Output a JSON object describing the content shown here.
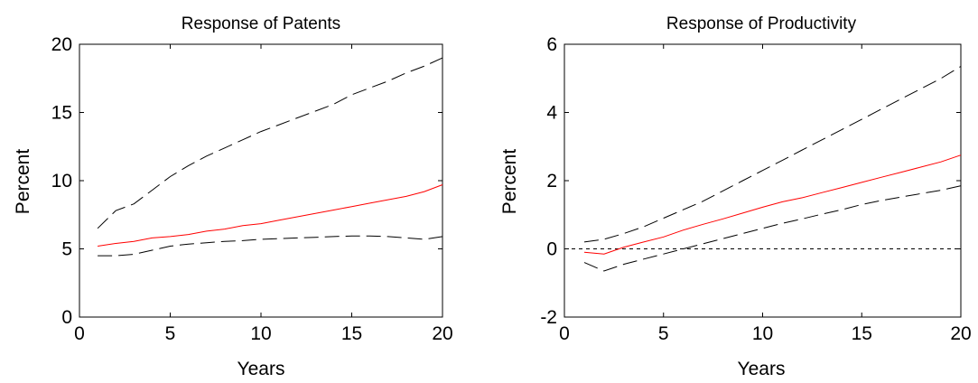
{
  "chart_data": [
    {
      "type": "line",
      "title": "Response of Patents",
      "xlabel": "Years",
      "ylabel": "Percent",
      "xlim": [
        0,
        20
      ],
      "ylim": [
        0,
        20
      ],
      "xticks": [
        "0",
        "5",
        "10",
        "15",
        "20"
      ],
      "yticks": [
        "0",
        "5",
        "10",
        "15",
        "20"
      ],
      "grid": false,
      "x": [
        1,
        2,
        3,
        4,
        5,
        6,
        7,
        8,
        9,
        10,
        11,
        12,
        13,
        14,
        15,
        16,
        17,
        18,
        19,
        20
      ],
      "series": [
        {
          "role": "upper-band",
          "style": "dashed",
          "color": "#000000",
          "values": [
            6.5,
            7.8,
            8.3,
            9.3,
            10.3,
            11.1,
            11.8,
            12.4,
            13.0,
            13.6,
            14.1,
            14.6,
            15.1,
            15.6,
            16.3,
            16.8,
            17.3,
            17.9,
            18.4,
            19.0
          ]
        },
        {
          "role": "point-estimate",
          "style": "solid",
          "color": "#ff0000",
          "values": [
            5.2,
            5.4,
            5.55,
            5.8,
            5.9,
            6.05,
            6.3,
            6.45,
            6.7,
            6.85,
            7.1,
            7.35,
            7.6,
            7.85,
            8.1,
            8.35,
            8.6,
            8.85,
            9.2,
            9.7
          ]
        },
        {
          "role": "lower-band",
          "style": "dashed",
          "color": "#000000",
          "values": [
            4.5,
            4.5,
            4.6,
            4.9,
            5.2,
            5.35,
            5.45,
            5.55,
            5.6,
            5.7,
            5.75,
            5.8,
            5.85,
            5.9,
            5.95,
            5.95,
            5.9,
            5.8,
            5.7,
            5.9
          ]
        }
      ]
    },
    {
      "type": "line",
      "title": "Response of Productivity",
      "xlabel": "Years",
      "ylabel": "Percent",
      "xlim": [
        0,
        20
      ],
      "ylim": [
        -2,
        6
      ],
      "xticks": [
        "0",
        "5",
        "10",
        "15",
        "20"
      ],
      "yticks": [
        "-2",
        "0",
        "2",
        "4",
        "6"
      ],
      "grid": false,
      "zero_line": {
        "y": 0,
        "style": "dotted",
        "color": "#000000"
      },
      "x": [
        1,
        2,
        3,
        4,
        5,
        6,
        7,
        8,
        9,
        10,
        11,
        12,
        13,
        14,
        15,
        16,
        17,
        18,
        19,
        20
      ],
      "series": [
        {
          "role": "upper-band",
          "style": "dashed",
          "color": "#000000",
          "values": [
            0.2,
            0.28,
            0.45,
            0.65,
            0.9,
            1.15,
            1.4,
            1.7,
            2.0,
            2.3,
            2.6,
            2.9,
            3.2,
            3.5,
            3.8,
            4.1,
            4.4,
            4.7,
            5.0,
            5.35
          ]
        },
        {
          "role": "point-estimate",
          "style": "solid",
          "color": "#ff0000",
          "values": [
            -0.1,
            -0.15,
            0.05,
            0.2,
            0.35,
            0.55,
            0.72,
            0.88,
            1.05,
            1.22,
            1.38,
            1.5,
            1.65,
            1.8,
            1.95,
            2.1,
            2.25,
            2.4,
            2.55,
            2.75
          ]
        },
        {
          "role": "lower-band",
          "style": "dashed",
          "color": "#000000",
          "values": [
            -0.4,
            -0.65,
            -0.45,
            -0.3,
            -0.15,
            0.0,
            0.15,
            0.3,
            0.45,
            0.6,
            0.75,
            0.88,
            1.02,
            1.15,
            1.3,
            1.42,
            1.52,
            1.62,
            1.72,
            1.85
          ]
        }
      ]
    }
  ]
}
